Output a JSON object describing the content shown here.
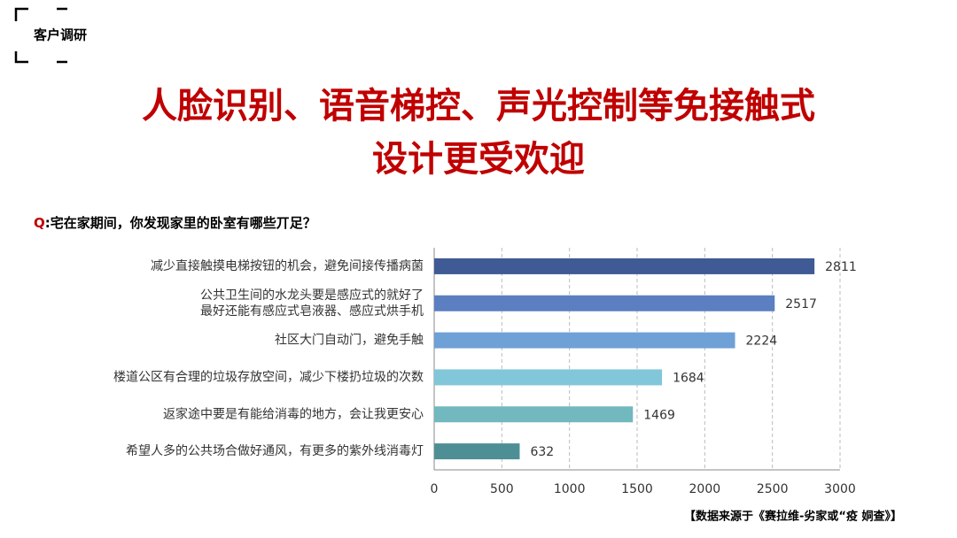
{
  "tag": "客户调研",
  "title": [
    "人脸识别、语音梯控、声光控制等免接触式",
    "设计更受欢迎"
  ],
  "question": {
    "prefix": "Q",
    "text": ":宅在家期间，你发现家里的卧室有哪些丌足？"
  },
  "source": "【数据来源于《赛拉维-劣家或“疫 姛查》】",
  "chart_data": {
    "type": "hbar",
    "categories": [
      "减少直接触摸电梯按钮的机会，避免间接传播病菌",
      "公共卫生间的水龙头要是感应式的就好了\n最好还能有感应式皂液器、感应式烘手机",
      "社区大门自动门，避免手触",
      "楼道公区有合理的垃圾存放空间，减少下楼扔垃圾的次数",
      "返家途中要是有能给消毒的地方，会让我更安心",
      "希望人多的公共场合做好通风，有更多的紫外线消毒灯"
    ],
    "values": [
      2811,
      2517,
      2224,
      1684,
      1469,
      632
    ],
    "colors": [
      "#3f5a94",
      "#5b7fc0",
      "#6fa0d6",
      "#82c6da",
      "#72b8bf",
      "#4e8f95"
    ],
    "xlim": [
      0,
      3000
    ],
    "xticks": [
      0,
      500,
      1000,
      1500,
      2000,
      2500,
      3000
    ],
    "grid": true
  }
}
